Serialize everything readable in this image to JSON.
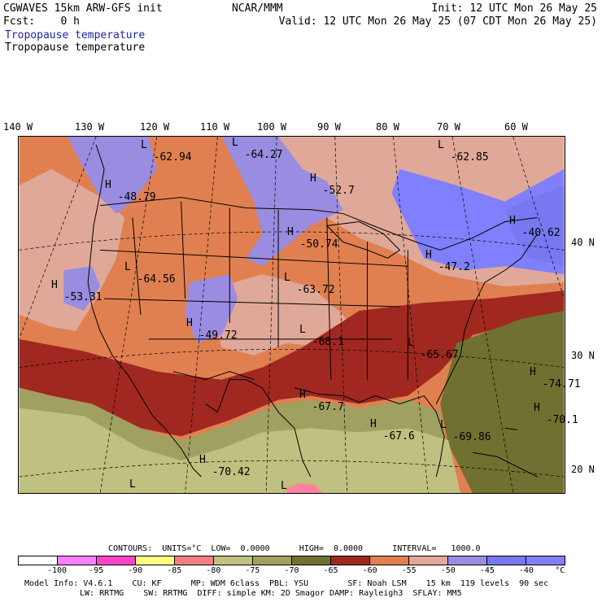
{
  "header": {
    "model": "CGWAVES 15km ARW-GFS init",
    "fcst": "Fcst:    0 h",
    "center": "NCAR/MMM",
    "init": "Init: 12 UTC Mon 26 May 25",
    "valid": "Valid: 12 UTC Mon 26 May 25 (07 CDT Mon 26 May 25)",
    "field_colored": "Tropopause temperature",
    "field_contour": "Tropopause temperature"
  },
  "map": {
    "lon_labels": [
      "140 W",
      "130 W",
      "120 W",
      "110 W",
      "100 W",
      "90 W",
      "80 W",
      "70 W",
      "60 W"
    ],
    "lat_labels": [
      "40 N",
      "30 N",
      "20 N"
    ],
    "annotations": [
      {
        "sym": "L",
        "value": "-62.94"
      },
      {
        "sym": "L",
        "value": "-64.27"
      },
      {
        "sym": "L",
        "value": "-62.85"
      },
      {
        "sym": "H",
        "value": "-52.7"
      },
      {
        "sym": "H",
        "value": "-48.79"
      },
      {
        "sym": "H",
        "value": "-40.62"
      },
      {
        "sym": "H",
        "value": "-50.74"
      },
      {
        "sym": "L",
        "value": "-64.56"
      },
      {
        "sym": "H",
        "value": "-47.2"
      },
      {
        "sym": "H",
        "value": "-53.31"
      },
      {
        "sym": "L",
        "value": "-63.72"
      },
      {
        "sym": "H",
        "value": "-49.72"
      },
      {
        "sym": "L",
        "value": "-68.1"
      },
      {
        "sym": "L",
        "value": "-65.67"
      },
      {
        "sym": "H",
        "value": "-74.71"
      },
      {
        "sym": "H",
        "value": "-67.7"
      },
      {
        "sym": "H",
        "value": "-70.1"
      },
      {
        "sym": "H",
        "value": "-67.6"
      },
      {
        "sym": "L",
        "value": "-69.86"
      },
      {
        "sym": "H",
        "value": "-70.42"
      },
      {
        "sym": "L",
        "value": ""
      },
      {
        "sym": "L",
        "value": ""
      }
    ]
  },
  "contours": {
    "text": "CONTOURS:  UNITS=°C  LOW=  0.0000      HIGH=  0.0000      INTERVAL=   1000.0"
  },
  "colorbar": {
    "colors": [
      "#ffffff",
      "#ff80ff",
      "#ff44cc",
      "#ffff80",
      "#f08080",
      "#c0c080",
      "#a0a060",
      "#707030",
      "#a02820",
      "#e08050",
      "#e0a898",
      "#9a8ce0",
      "#7878f0",
      "#8080ff"
    ],
    "labels": [
      "-100",
      "-95",
      "-90",
      "-85",
      "-80",
      "-75",
      "-70",
      "-65",
      "-60",
      "-55",
      "-50",
      "-45",
      "-40",
      "°C"
    ]
  },
  "footer": {
    "line1": "Model Info: V4.6.1    CU: KF      MP: WDM 6class  PBL: YSU        SF: Noah LSM    15 km  119 levels  90 sec",
    "line2": "LW: RRTMG    SW: RRTMG  DIFF: simple KM: 2D Smagor DAMP: Rayleigh3  SFLAY: MM5"
  }
}
